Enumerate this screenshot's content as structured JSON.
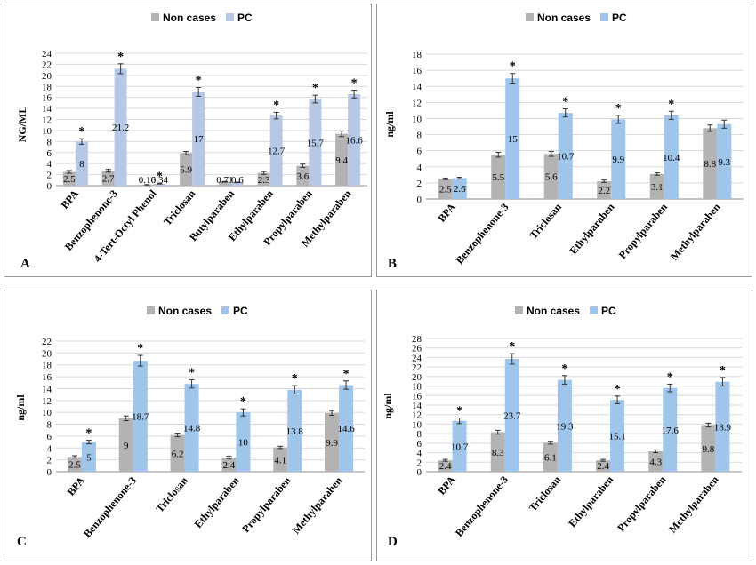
{
  "colors": {
    "non_cases": "#b3b3b3",
    "pc_pale": "#b7c7e6",
    "pc_blue": "#9fc5ea",
    "grid": "#d9d9d9"
  },
  "chart_data": [
    {
      "panel": "A",
      "type": "bar",
      "ylabel": "NG/ML",
      "ylim": [
        0,
        24
      ],
      "ytick_step": 2,
      "legend": "top-center",
      "categories": [
        "BPA",
        "Benzophenone-3",
        "4-Tert-Octyl Phenol",
        "Triclosan",
        "Butylparaben",
        "Ethylparaben",
        "Propylparaben",
        "Methylparaben"
      ],
      "series": [
        {
          "name": "Non cases",
          "values": [
            2.5,
            2.7,
            0.16,
            5.9,
            0.71,
            2.3,
            3.6,
            9.4
          ],
          "labels": [
            "2.5",
            "2.7",
            "0.16",
            "5.9",
            "0.71",
            "2.3",
            "3.6",
            "9.4"
          ],
          "errors": [
            0.25,
            0.25,
            0.04,
            0.3,
            0.05,
            0.25,
            0.3,
            0.5
          ]
        },
        {
          "name": "PC",
          "values": [
            8,
            21.2,
            0.34,
            17,
            0.6,
            12.7,
            15.7,
            16.6
          ],
          "labels": [
            "8",
            "21.2",
            "0.34",
            "17",
            "0.6",
            "12.7",
            "15.7",
            "16.6"
          ],
          "errors": [
            0.5,
            0.9,
            0.05,
            0.8,
            0.05,
            0.6,
            0.7,
            0.7
          ]
        }
      ],
      "significance": [
        true,
        true,
        true,
        true,
        false,
        true,
        true,
        true
      ]
    },
    {
      "panel": "B",
      "type": "bar",
      "ylabel": "ng/ml",
      "ylim": [
        0,
        18
      ],
      "ytick_step": 2,
      "legend": "top-center",
      "categories": [
        "BPA",
        "Benzophenone-3",
        "Triclosan",
        "Ethylparaben",
        "Propylparaben",
        "Methylparaben"
      ],
      "series": [
        {
          "name": "Non cases",
          "values": [
            2.5,
            5.5,
            5.6,
            2.2,
            3.1,
            8.8
          ],
          "labels": [
            "2.5",
            "5.5",
            "5.6",
            "2.2",
            "3.1",
            "8.8"
          ],
          "errors": [
            0.1,
            0.3,
            0.3,
            0.15,
            0.15,
            0.4
          ]
        },
        {
          "name": "PC",
          "values": [
            2.6,
            15,
            10.7,
            9.9,
            10.4,
            9.3
          ],
          "labels": [
            "2.6",
            "15",
            "10.7",
            "9.9",
            "10.4",
            "9.3"
          ],
          "errors": [
            0.1,
            0.6,
            0.5,
            0.5,
            0.5,
            0.5
          ]
        }
      ],
      "significance": [
        false,
        true,
        true,
        true,
        true,
        false
      ]
    },
    {
      "panel": "C",
      "type": "bar",
      "ylabel": "ng/ml",
      "ylim": [
        0,
        22
      ],
      "ytick_step": 2,
      "legend": "top-center",
      "categories": [
        "BPA",
        "Benzophenone-3",
        "Triclosan",
        "Ethylparaben",
        "Propylparaben",
        "Methylparaben"
      ],
      "series": [
        {
          "name": "Non cases",
          "values": [
            2.5,
            9,
            6.2,
            2.4,
            4.1,
            9.9
          ],
          "labels": [
            "2.5",
            "9",
            "6.2",
            "2.4",
            "4.1",
            "9.9"
          ],
          "errors": [
            0.2,
            0.4,
            0.3,
            0.2,
            0.2,
            0.4
          ]
        },
        {
          "name": "PC",
          "values": [
            5,
            18.7,
            14.8,
            10,
            13.8,
            14.6
          ],
          "labels": [
            "5",
            "18.7",
            "14.8",
            "10",
            "13.8",
            "14.6"
          ],
          "errors": [
            0.3,
            0.9,
            0.7,
            0.6,
            0.7,
            0.7
          ]
        }
      ],
      "significance": [
        true,
        true,
        true,
        true,
        true,
        true
      ]
    },
    {
      "panel": "D",
      "type": "bar",
      "ylabel": "ng/ml",
      "ylim": [
        0,
        28
      ],
      "ytick_step": 2,
      "legend": "top-center",
      "categories": [
        "BPA",
        "Benzophenone-3",
        "Triclosan",
        "Ethylparaben",
        "Propylparaben",
        "Methylparaben"
      ],
      "series": [
        {
          "name": "Non cases",
          "values": [
            2.4,
            8.3,
            6.1,
            2.4,
            4.3,
            9.8
          ],
          "labels": [
            "2.4",
            "8.3",
            "6.1",
            "2.4",
            "4.3",
            "9.8"
          ],
          "errors": [
            0.2,
            0.4,
            0.3,
            0.2,
            0.3,
            0.4
          ]
        },
        {
          "name": "PC",
          "values": [
            10.7,
            23.7,
            19.3,
            15.1,
            17.6,
            18.9
          ],
          "labels": [
            "10.7",
            "23.7",
            "19.3",
            "15.1",
            "17.6",
            "18.9"
          ],
          "errors": [
            0.6,
            1.1,
            0.9,
            0.8,
            0.8,
            0.9
          ]
        }
      ],
      "significance": [
        true,
        true,
        true,
        true,
        true,
        true
      ]
    }
  ]
}
